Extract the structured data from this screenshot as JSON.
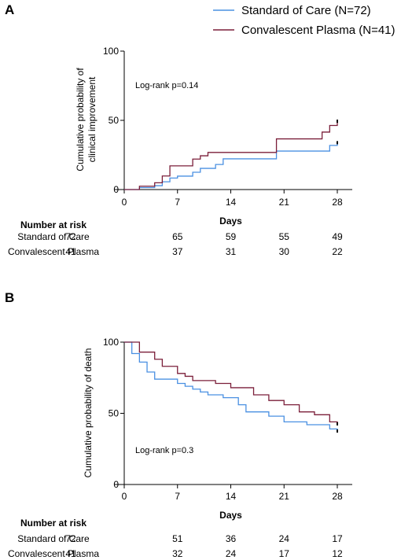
{
  "colors": {
    "standard": "#4a90e2",
    "plasma": "#7b1f3a",
    "axis": "#000000"
  },
  "chart_data": [
    {
      "panel_label": "A",
      "type": "line",
      "step": true,
      "ylabel_lines": [
        "Cumulative probability of",
        "clinical improvement"
      ],
      "xlabel": "Days",
      "annotation": "Log-rank p=0.14",
      "xlim": [
        0,
        28
      ],
      "ylim": [
        0,
        100
      ],
      "xticks": [
        0,
        7,
        14,
        21,
        28
      ],
      "yticks": [
        0,
        50,
        100
      ],
      "legend": [
        {
          "key": "standard",
          "label": "Standard of Care (N=72)"
        },
        {
          "key": "plasma",
          "label": "Convalescent Plasma (N=41)"
        }
      ],
      "legend_position": "top-right",
      "series": [
        {
          "key": "standard",
          "name": "Standard of Care",
          "x": [
            0,
            2,
            4,
            5,
            6,
            7,
            9,
            10,
            12,
            13,
            20,
            27,
            28
          ],
          "y": [
            0,
            1.4,
            2.8,
            5.6,
            8.3,
            9.7,
            12.5,
            15.3,
            18.1,
            22.2,
            27.8,
            31.9,
            33.3
          ]
        },
        {
          "key": "plasma",
          "name": "Convalescent Plasma",
          "x": [
            0,
            2,
            4,
            5,
            6,
            9,
            10,
            11,
            20,
            26,
            27,
            28
          ],
          "y": [
            0,
            2.4,
            4.9,
            9.8,
            17.1,
            22.0,
            24.4,
            26.8,
            36.6,
            41.5,
            46.3,
            48.8
          ]
        }
      ],
      "risk_table": {
        "title": "Number at risk",
        "days": [
          0,
          7,
          14,
          21,
          28
        ],
        "rows": [
          {
            "label": "Standard of Care",
            "values": [
              "72",
              "65",
              "59",
              "55",
              "49"
            ]
          },
          {
            "label": "Convalescent Plasma",
            "values": [
              "41",
              "37",
              "31",
              "30",
              "22"
            ]
          }
        ]
      }
    },
    {
      "panel_label": "B",
      "type": "line",
      "step": true,
      "ylabel_lines": [
        "Cumulative probability of death"
      ],
      "xlabel": "Days",
      "annotation": "Log-rank p=0.3",
      "xlim": [
        0,
        28
      ],
      "ylim": [
        0,
        100
      ],
      "xticks": [
        0,
        7,
        14,
        21,
        28
      ],
      "yticks": [
        0,
        50,
        100
      ],
      "series": [
        {
          "key": "standard",
          "name": "Standard of Care",
          "x": [
            0,
            1,
            2,
            3,
            4,
            7,
            8,
            9,
            10,
            11,
            13,
            15,
            16,
            19,
            21,
            24,
            27,
            28
          ],
          "y": [
            100,
            92,
            86,
            79,
            74,
            71,
            69,
            67,
            65,
            63,
            61,
            56,
            51,
            48,
            44,
            42,
            39,
            37
          ]
        },
        {
          "key": "plasma",
          "name": "Convalescent Plasma",
          "x": [
            0,
            2,
            4,
            5,
            7,
            8,
            9,
            12,
            14,
            17,
            19,
            21,
            23,
            25,
            27,
            28
          ],
          "y": [
            100,
            93,
            88,
            83,
            78,
            76,
            73,
            71,
            68,
            63,
            59,
            56,
            51,
            49,
            44,
            42
          ]
        }
      ],
      "risk_table": {
        "title": "Number at risk",
        "days": [
          0,
          7,
          14,
          21,
          28
        ],
        "rows": [
          {
            "label": "Standard of Care",
            "values": [
              "72",
              "51",
              "36",
              "24",
              "17"
            ]
          },
          {
            "label": "Convalescent Plasma",
            "values": [
              "41",
              "32",
              "24",
              "17",
              "12"
            ]
          }
        ]
      }
    }
  ]
}
